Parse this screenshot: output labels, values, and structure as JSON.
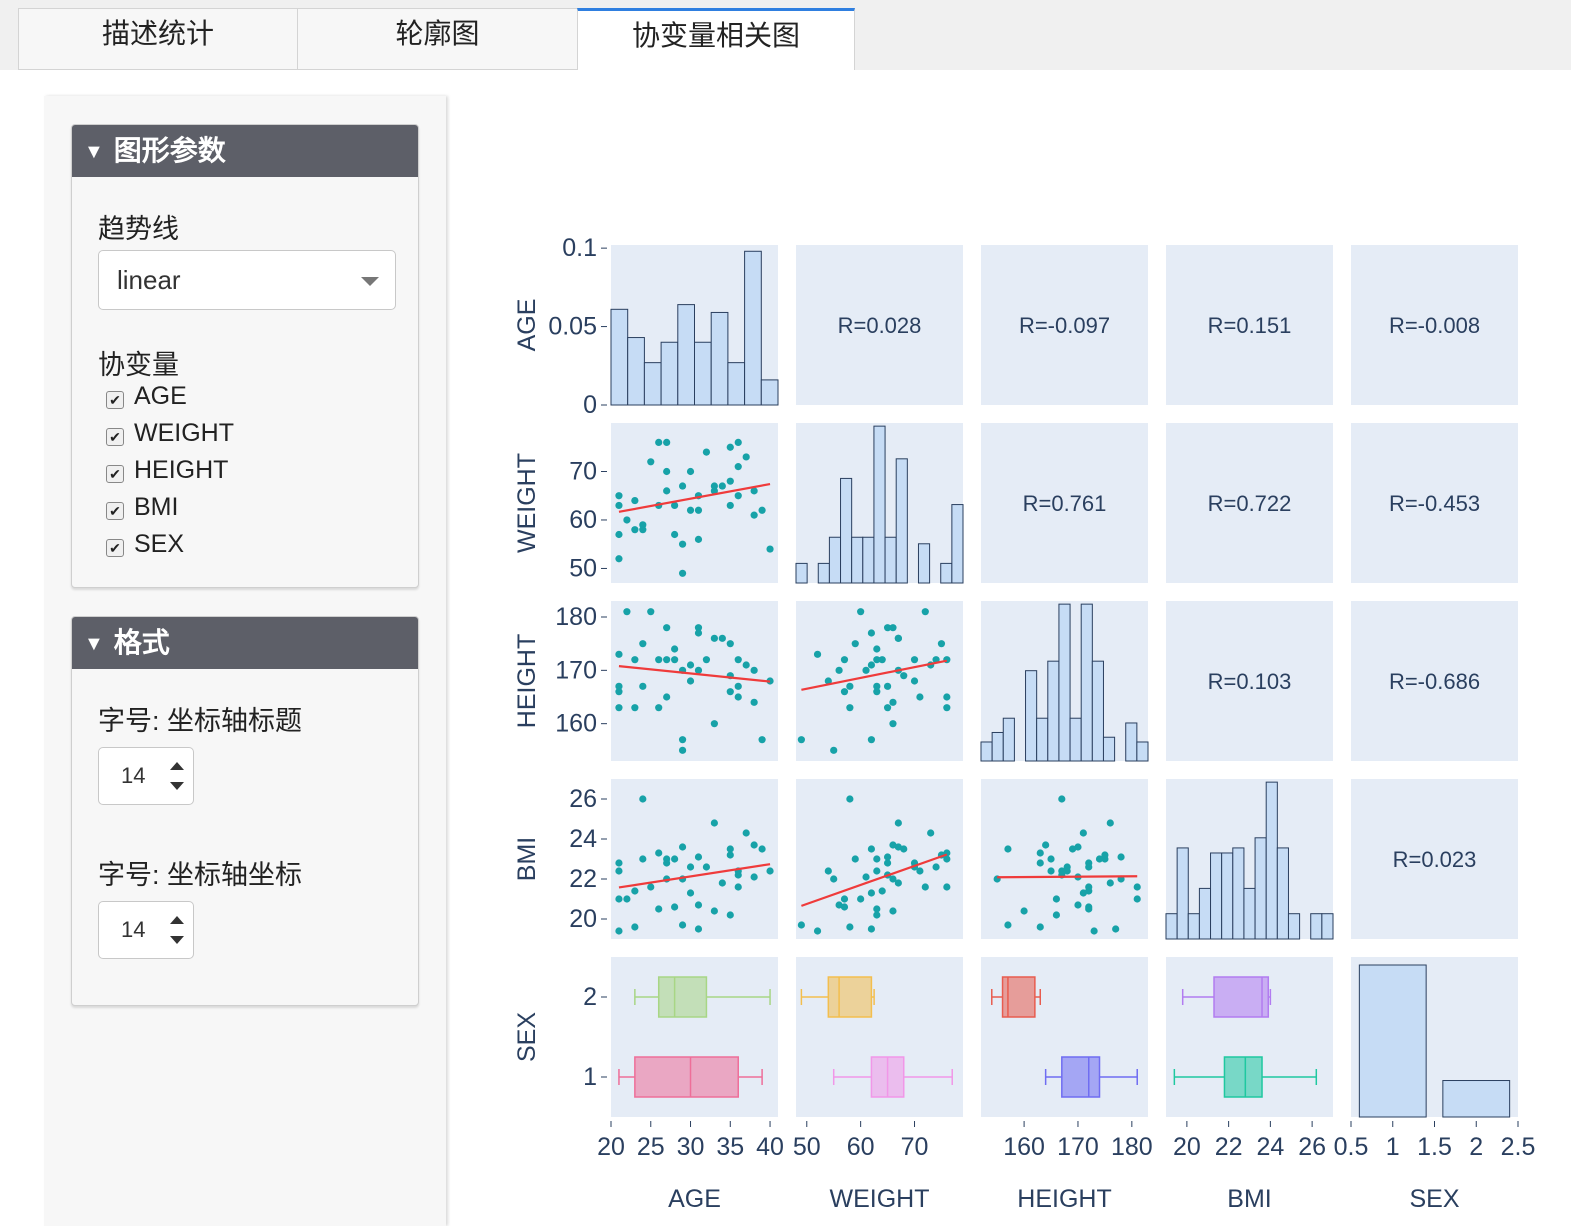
{
  "tabs": [
    {
      "label": "描述统计",
      "active": false
    },
    {
      "label": "轮廓图",
      "active": false
    },
    {
      "label": "协变量相关图",
      "active": true
    }
  ],
  "sidebar": {
    "graph_params": {
      "header": "图形参数",
      "trendline_label": "趋势线",
      "trendline_value": "linear",
      "covariate_label": "协变量",
      "covariates": [
        {
          "label": "AGE",
          "checked": true
        },
        {
          "label": "WEIGHT",
          "checked": true
        },
        {
          "label": "HEIGHT",
          "checked": true
        },
        {
          "label": "BMI",
          "checked": true
        },
        {
          "label": "SEX",
          "checked": true
        }
      ]
    },
    "format": {
      "header": "格式",
      "axis_title_size_label": "字号: 坐标轴标题",
      "axis_title_size": "14",
      "axis_tick_size_label": "字号: 坐标轴坐标",
      "axis_tick_size": "14"
    }
  },
  "chart_data": {
    "type": "scatter-matrix",
    "variables": [
      "AGE",
      "WEIGHT",
      "HEIGHT",
      "BMI",
      "SEX"
    ],
    "colors": {
      "panel_bg": "#e5ecf6",
      "hist_fill": "#c6dcf5",
      "hist_edge": "#2a3f5f",
      "point": "#17a2a8",
      "trend": "#ef3b3b",
      "axis_text": "#2a3f5f"
    },
    "axes": {
      "AGE": {
        "range": [
          20,
          41
        ],
        "ticks": [
          20,
          25,
          30,
          35,
          40
        ]
      },
      "WEIGHT": {
        "range": [
          48,
          79
        ],
        "ticks": [
          50,
          60,
          70
        ]
      },
      "HEIGHT": {
        "range": [
          152,
          183
        ],
        "ticks": [
          160,
          170,
          180
        ]
      },
      "BMI": {
        "range": [
          19,
          27
        ],
        "ticks": [
          20,
          22,
          24,
          26
        ]
      },
      "SEX": {
        "range": [
          0.5,
          2.5
        ],
        "ticks": [
          0.5,
          1,
          1.5,
          2,
          2.5
        ]
      }
    },
    "y_axes": {
      "AGE": {
        "range": [
          0,
          0.102
        ],
        "ticks": [
          0,
          0.05,
          0.1
        ],
        "tick_labels": [
          "0",
          "0.05",
          "0.1"
        ]
      },
      "WEIGHT": {
        "range": [
          47,
          80
        ],
        "ticks": [
          50,
          60,
          70
        ]
      },
      "HEIGHT": {
        "range": [
          153,
          183
        ],
        "ticks": [
          160,
          170,
          180
        ]
      },
      "BMI": {
        "range": [
          19,
          27
        ],
        "ticks": [
          20,
          22,
          24,
          26
        ]
      },
      "SEX": {
        "range": [
          0.5,
          2.5
        ],
        "ticks": [
          1,
          2
        ]
      }
    },
    "correlations": [
      {
        "row": 0,
        "col": 1,
        "text": "R=0.028"
      },
      {
        "row": 0,
        "col": 2,
        "text": "R=-0.097"
      },
      {
        "row": 0,
        "col": 3,
        "text": "R=0.151"
      },
      {
        "row": 0,
        "col": 4,
        "text": "R=-0.008"
      },
      {
        "row": 1,
        "col": 2,
        "text": "R=0.761"
      },
      {
        "row": 1,
        "col": 3,
        "text": "R=0.722"
      },
      {
        "row": 1,
        "col": 4,
        "text": "R=-0.453"
      },
      {
        "row": 2,
        "col": 3,
        "text": "R=0.103"
      },
      {
        "row": 2,
        "col": 4,
        "text": "R=-0.686"
      },
      {
        "row": 3,
        "col": 4,
        "text": "R=0.023"
      }
    ],
    "histograms": {
      "AGE": [
        0.061,
        0.043,
        0.027,
        0.04,
        0.064,
        0.04,
        0.059,
        0.027,
        0.098,
        0.016
      ],
      "WEIGHT": [
        0.3,
        0,
        0.3,
        0.7,
        1.6,
        0.7,
        0.7,
        2.4,
        0.7,
        1.9,
        0,
        0.6,
        0,
        0.3,
        1.2
      ],
      "HEIGHT": [
        0.4,
        0.6,
        0.9,
        0,
        1.9,
        0.9,
        2.1,
        3.3,
        0.9,
        3.3,
        2.1,
        0.5,
        0,
        0.8,
        0.4
      ],
      "BMI": [
        0.5,
        1.8,
        0.5,
        1.0,
        1.7,
        1.7,
        1.8,
        1.0,
        2.0,
        3.1,
        1.8,
        0.5,
        0,
        0.5,
        0.5
      ],
      "SEX": [
        1.0,
        0.24
      ]
    },
    "points": {
      "AGE": [
        21,
        21,
        21,
        21,
        23,
        23,
        24,
        25,
        26,
        26,
        27,
        27,
        28,
        28,
        29,
        29,
        30,
        30,
        31,
        31,
        32,
        33,
        34,
        35,
        35,
        36,
        36,
        37,
        38,
        39,
        40,
        29,
        24,
        33,
        36,
        22,
        27,
        31,
        35,
        38
      ],
      "WEIGHT": [
        52,
        57,
        63,
        65,
        64,
        58,
        59,
        72,
        63,
        76,
        70,
        76,
        57,
        63,
        55,
        67,
        62,
        70,
        65,
        56,
        74,
        66,
        67,
        75,
        68,
        71,
        65,
        73,
        66,
        62,
        54,
        49,
        58,
        67,
        76,
        60,
        66,
        62,
        63,
        61
      ],
      "HEIGHT": [
        173,
        166,
        167,
        163,
        172,
        163,
        175,
        181,
        172,
        163,
        172,
        165,
        172,
        174,
        155,
        170,
        171,
        168,
        178,
        170,
        172,
        160,
        176,
        175,
        169,
        165,
        167,
        171,
        164,
        157,
        168,
        157,
        167,
        176,
        172,
        181,
        178,
        177,
        166,
        170
      ],
      "BMI": [
        19.4,
        21.0,
        22.4,
        22.8,
        21.4,
        19.6,
        23.0,
        21.6,
        20.5,
        23.3,
        22.8,
        23.0,
        20.6,
        23.0,
        22.0,
        23.6,
        21.3,
        22.6,
        23.1,
        20.7,
        22.6,
        20.4,
        21.8,
        23.2,
        23.5,
        22.4,
        22.2,
        24.3,
        23.7,
        23.5,
        22.4,
        19.7,
        26.0,
        24.8,
        21.6,
        21.0,
        22.0,
        19.5,
        20.2,
        22.1
      ]
    },
    "boxes": {
      "AGE": [
        {
          "sex": 2,
          "min": 23,
          "q1": 26,
          "median": 28,
          "q3": 32,
          "max": 40,
          "color": "#a8d685"
        },
        {
          "sex": 1,
          "min": 21,
          "q1": 23,
          "median": 30,
          "q3": 36,
          "max": 39,
          "color": "#ee6f99"
        }
      ],
      "WEIGHT": [
        {
          "sex": 2,
          "min": 49,
          "q1": 54,
          "median": 56,
          "q3": 62,
          "max": 62.5,
          "color": "#f3be4e"
        },
        {
          "sex": 1,
          "min": 55,
          "q1": 62,
          "median": 65,
          "q3": 68,
          "max": 77,
          "color": "#f197e8"
        }
      ],
      "HEIGHT": [
        {
          "sex": 2,
          "min": 154,
          "q1": 156,
          "median": 157,
          "q3": 162,
          "max": 163,
          "color": "#e85c4f"
        },
        {
          "sex": 1,
          "min": 164,
          "q1": 167,
          "median": 172,
          "q3": 174,
          "max": 181,
          "color": "#6f6df2"
        }
      ],
      "BMI": [
        {
          "sex": 2,
          "min": 19.8,
          "q1": 21.3,
          "median": 23.6,
          "q3": 23.9,
          "max": 24.0,
          "color": "#b27cf0"
        },
        {
          "sex": 1,
          "min": 19.4,
          "q1": 21.8,
          "median": 22.8,
          "q3": 23.6,
          "max": 26.2,
          "color": "#1fc8a0"
        }
      ]
    }
  }
}
